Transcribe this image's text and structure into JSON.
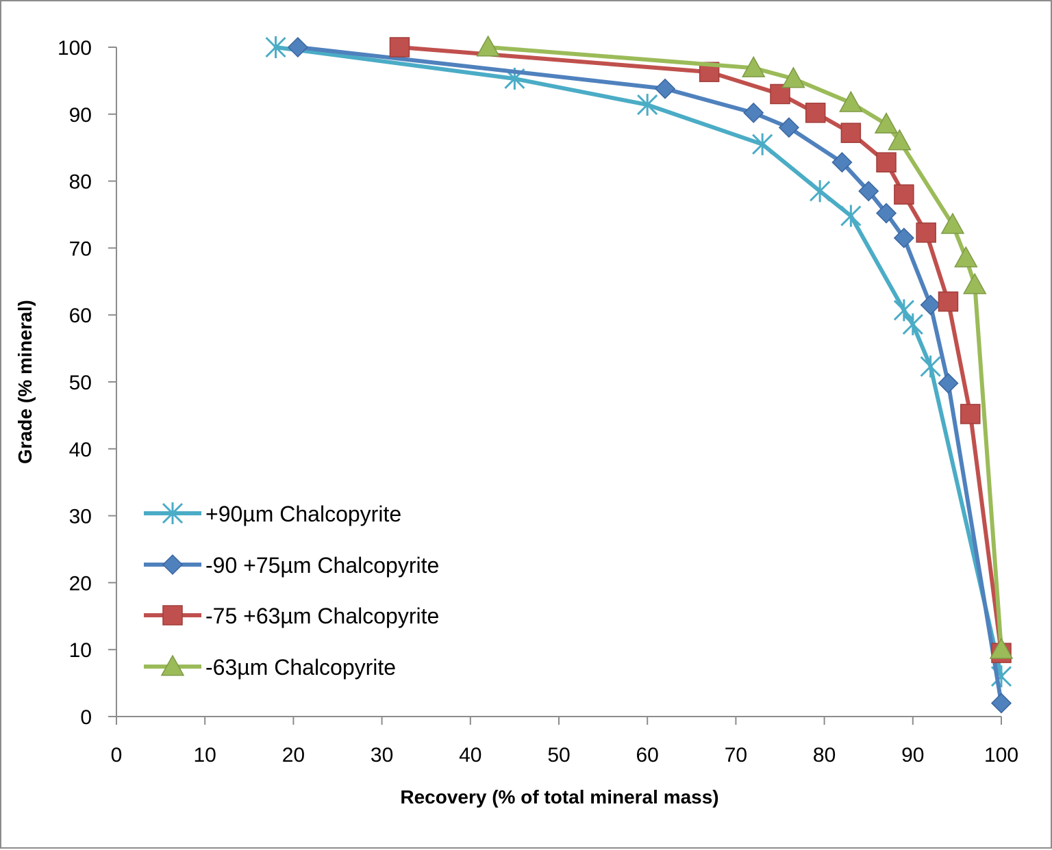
{
  "chart_data": {
    "type": "line",
    "title": "",
    "xlabel": "Recovery (% of total mineral mass)",
    "ylabel": "Grade (% mineral)",
    "xlim": [
      0,
      100
    ],
    "ylim": [
      0,
      100
    ],
    "x_ticks": [
      0,
      10,
      20,
      30,
      40,
      50,
      60,
      70,
      80,
      90,
      100
    ],
    "y_ticks": [
      0,
      10,
      20,
      30,
      40,
      50,
      60,
      70,
      80,
      90,
      100
    ],
    "grid": false,
    "legend_position": "bottom-left",
    "series": [
      {
        "name": "+90µm Chalcopyrite",
        "color": "#4BACC6",
        "marker": "star",
        "x": [
          18,
          45,
          60,
          73,
          79.5,
          83,
          89,
          90,
          92,
          100
        ],
        "y": [
          100,
          95.3,
          91.4,
          85.5,
          78.5,
          74.8,
          60.7,
          58.6,
          52.3,
          6
        ]
      },
      {
        "name": "-90 +75µm Chalcopyrite",
        "color": "#4F81BD",
        "marker": "diamond",
        "x": [
          20.5,
          62,
          72,
          76,
          82,
          85,
          87,
          89,
          92,
          94,
          100
        ],
        "y": [
          100,
          93.8,
          90.2,
          88,
          82.8,
          78.5,
          75.2,
          71.5,
          61.5,
          49.8,
          2
        ]
      },
      {
        "name": "-75 +63µm Chalcopyrite",
        "color": "#C0504D",
        "marker": "square",
        "x": [
          32,
          67,
          75,
          79,
          83,
          87,
          89,
          91.5,
          94,
          96.5,
          100
        ],
        "y": [
          100,
          96.3,
          93,
          90.2,
          87.2,
          82.8,
          78,
          72.3,
          62,
          45.2,
          9.5
        ]
      },
      {
        "name": "-63µm Chalcopyrite",
        "color": "#9BBB59",
        "marker": "triangle",
        "x": [
          42,
          72,
          76.5,
          83,
          87,
          88.5,
          94.5,
          96,
          97,
          100
        ],
        "y": [
          100,
          96.9,
          95.3,
          91.7,
          88.5,
          86,
          73.5,
          68.5,
          64.5,
          10
        ]
      }
    ]
  }
}
